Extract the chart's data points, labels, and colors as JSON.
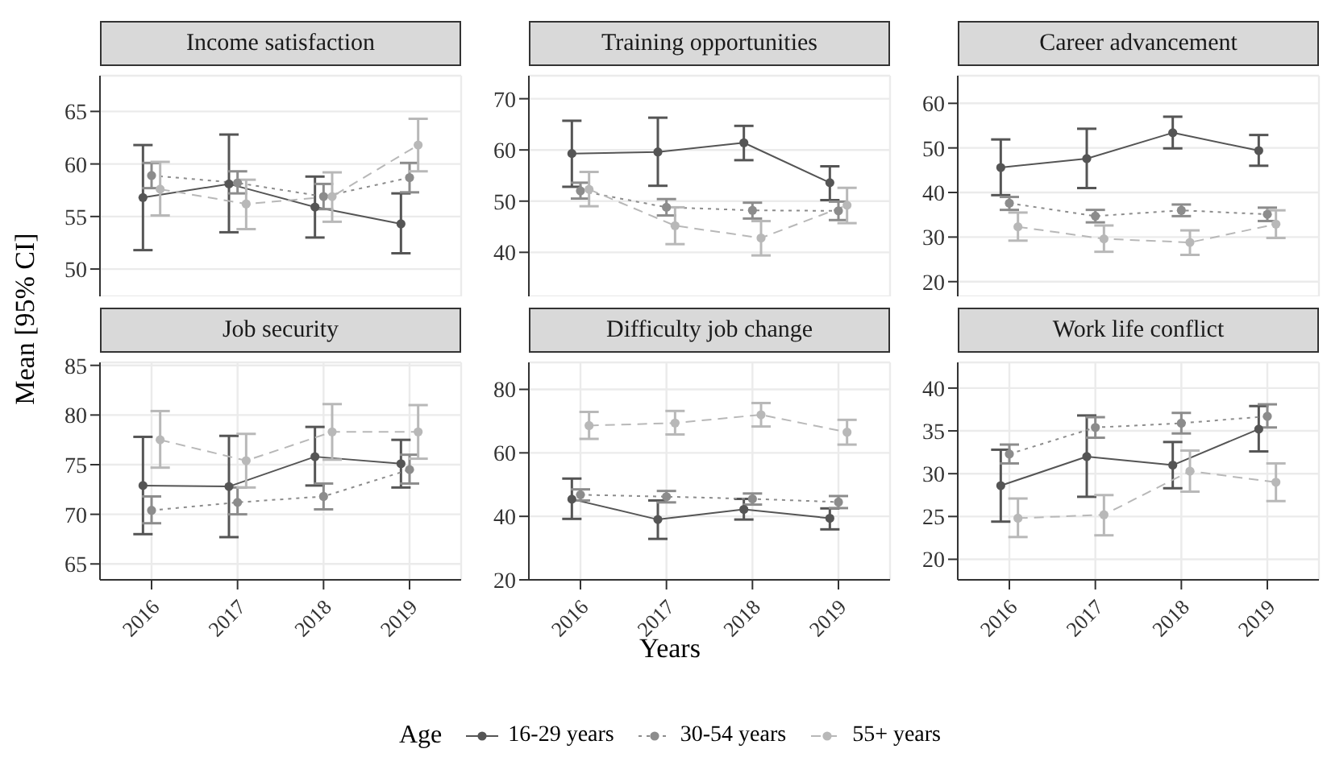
{
  "chart_data": [
    {
      "type": "line",
      "title": "Income satisfaction",
      "ylabel": "Mean [95% CI]",
      "legend_title": "Age",
      "legend": "bottom",
      "categories": [
        "2016",
        "2017",
        "2018",
        "2019"
      ],
      "ylim": [
        47.4,
        68.4
      ],
      "yticks": [
        50,
        55,
        60,
        65
      ],
      "grid": true,
      "tick_labels": "y",
      "marker": "circle",
      "series": [
        {
          "name": "16-29 years",
          "color": "#555555",
          "line_style": "solid",
          "values": [
            56.8,
            58.1,
            55.9,
            54.3
          ],
          "errors": [
            [
              51.8,
              61.8
            ],
            [
              53.5,
              62.8
            ],
            [
              53.0,
              58.8
            ],
            [
              51.5,
              57.2
            ]
          ]
        },
        {
          "name": "30-54 years",
          "color": "#8c8c8c",
          "line_style": "dotted",
          "values": [
            58.9,
            58.2,
            56.9,
            58.7
          ],
          "errors": [
            [
              57.7,
              60.1
            ],
            [
              57.2,
              59.3
            ],
            [
              55.7,
              58.1
            ],
            [
              57.3,
              60.1
            ]
          ]
        },
        {
          "name": "55+ years",
          "color": "#b8b8b8",
          "line_style": "dashed",
          "values": [
            57.6,
            56.2,
            56.9,
            61.8
          ],
          "errors": [
            [
              55.1,
              60.2
            ],
            [
              53.8,
              58.5
            ],
            [
              54.5,
              59.2
            ],
            [
              59.3,
              64.3
            ]
          ]
        }
      ]
    },
    {
      "type": "line",
      "title": "Training opportunities",
      "categories": [
        "2016",
        "2017",
        "2018",
        "2019"
      ],
      "ylim": [
        31.4,
        74.5
      ],
      "yticks": [
        40,
        50,
        60,
        70
      ],
      "grid": true,
      "tick_labels": "y",
      "marker": "circle",
      "series": [
        {
          "color": "#555555",
          "line_style": "solid",
          "values": [
            59.3,
            59.6,
            61.4,
            53.6
          ],
          "errors": [
            [
              52.8,
              65.7
            ],
            [
              53.0,
              66.3
            ],
            [
              58.0,
              64.7
            ],
            [
              50.2,
              56.8
            ]
          ]
        },
        {
          "color": "#8c8c8c",
          "line_style": "dotted",
          "values": [
            52.0,
            48.8,
            48.2,
            48.1
          ],
          "errors": [
            [
              50.5,
              53.6
            ],
            [
              47.2,
              50.4
            ],
            [
              46.6,
              49.7
            ],
            [
              46.3,
              49.9
            ]
          ]
        },
        {
          "color": "#b8b8b8",
          "line_style": "dashed",
          "values": [
            52.3,
            45.2,
            42.8,
            49.2
          ],
          "errors": [
            [
              49.0,
              55.7
            ],
            [
              41.6,
              48.8
            ],
            [
              39.4,
              46.1
            ],
            [
              45.7,
              52.6
            ]
          ]
        }
      ]
    },
    {
      "type": "line",
      "title": "Career advancement",
      "categories": [
        "2016",
        "2017",
        "2018",
        "2019"
      ],
      "ylim": [
        16.7,
        66.2
      ],
      "yticks": [
        20,
        30,
        40,
        50,
        60
      ],
      "grid": true,
      "tick_labels": "y",
      "marker": "circle",
      "series": [
        {
          "color": "#555555",
          "line_style": "solid",
          "values": [
            45.6,
            47.6,
            53.4,
            49.4
          ],
          "errors": [
            [
              39.4,
              51.9
            ],
            [
              41.0,
              54.3
            ],
            [
              49.9,
              57.0
            ],
            [
              46.0,
              52.9
            ]
          ]
        },
        {
          "color": "#8c8c8c",
          "line_style": "dotted",
          "values": [
            37.6,
            34.7,
            36.0,
            35.1
          ],
          "errors": [
            [
              36.1,
              39.0
            ],
            [
              33.3,
              36.1
            ],
            [
              34.7,
              37.3
            ],
            [
              33.6,
              36.6
            ]
          ]
        },
        {
          "color": "#b8b8b8",
          "line_style": "dashed",
          "values": [
            32.3,
            29.6,
            28.8,
            32.9
          ],
          "errors": [
            [
              29.2,
              35.5
            ],
            [
              26.7,
              32.6
            ],
            [
              26.0,
              31.5
            ],
            [
              29.8,
              36.0
            ]
          ]
        }
      ]
    },
    {
      "type": "line",
      "title": "Job security",
      "categories": [
        "2016",
        "2017",
        "2018",
        "2019"
      ],
      "ylim": [
        63.4,
        85.3
      ],
      "yticks": [
        65,
        70,
        75,
        80,
        85
      ],
      "grid": true,
      "marker": "circle",
      "series": [
        {
          "color": "#555555",
          "line_style": "solid",
          "values": [
            72.9,
            72.8,
            75.8,
            75.1
          ],
          "errors": [
            [
              68.0,
              77.8
            ],
            [
              67.7,
              77.9
            ],
            [
              72.9,
              78.8
            ],
            [
              72.7,
              77.5
            ]
          ]
        },
        {
          "color": "#8c8c8c",
          "line_style": "dotted",
          "values": [
            70.4,
            71.2,
            71.8,
            74.5
          ],
          "errors": [
            [
              69.1,
              71.8
            ],
            [
              70.0,
              72.7
            ],
            [
              70.5,
              73.1
            ],
            [
              73.1,
              76.0
            ]
          ]
        },
        {
          "color": "#b8b8b8",
          "line_style": "dashed",
          "values": [
            77.5,
            75.4,
            78.3,
            78.3
          ],
          "errors": [
            [
              74.7,
              80.4
            ],
            [
              72.7,
              78.1
            ],
            [
              75.5,
              81.1
            ],
            [
              75.6,
              81.0
            ]
          ]
        }
      ]
    },
    {
      "type": "line",
      "title": "Difficulty job change",
      "xlabel": "Years",
      "categories": [
        "2016",
        "2017",
        "2018",
        "2019"
      ],
      "ylim": [
        20,
        88.5
      ],
      "yticks": [
        20,
        40,
        60,
        80
      ],
      "grid": true,
      "marker": "circle",
      "series": [
        {
          "color": "#555555",
          "line_style": "solid",
          "values": [
            45.4,
            39.0,
            42.2,
            39.4
          ],
          "errors": [
            [
              39.2,
              51.9
            ],
            [
              32.9,
              45.0
            ],
            [
              39.0,
              45.5
            ],
            [
              35.9,
              42.5
            ]
          ]
        },
        {
          "color": "#8c8c8c",
          "line_style": "dotted",
          "values": [
            46.8,
            46.2,
            45.5,
            44.5
          ],
          "errors": [
            [
              45.0,
              48.5
            ],
            [
              44.4,
              48.0
            ],
            [
              43.7,
              47.2
            ],
            [
              42.6,
              46.4
            ]
          ]
        },
        {
          "color": "#b8b8b8",
          "line_style": "dashed",
          "values": [
            68.6,
            69.4,
            72.0,
            66.5
          ],
          "errors": [
            [
              64.4,
              72.9
            ],
            [
              65.8,
              73.2
            ],
            [
              68.3,
              75.7
            ],
            [
              62.6,
              70.4
            ]
          ]
        }
      ]
    },
    {
      "type": "line",
      "title": "Work life conflict",
      "categories": [
        "2016",
        "2017",
        "2018",
        "2019"
      ],
      "ylim": [
        17.6,
        43.0
      ],
      "yticks": [
        20,
        25,
        30,
        35,
        40
      ],
      "grid": true,
      "marker": "circle",
      "series": [
        {
          "color": "#555555",
          "line_style": "solid",
          "values": [
            28.6,
            32.0,
            31.0,
            35.2
          ],
          "errors": [
            [
              24.4,
              32.8
            ],
            [
              27.3,
              36.8
            ],
            [
              28.3,
              33.7
            ],
            [
              32.6,
              37.9
            ]
          ]
        },
        {
          "color": "#8c8c8c",
          "line_style": "dotted",
          "values": [
            32.3,
            35.4,
            35.9,
            36.7
          ],
          "errors": [
            [
              31.2,
              33.4
            ],
            [
              34.2,
              36.6
            ],
            [
              34.7,
              37.1
            ],
            [
              35.4,
              38.1
            ]
          ]
        },
        {
          "color": "#b8b8b8",
          "line_style": "dashed",
          "values": [
            24.8,
            25.2,
            30.3,
            29.0
          ],
          "errors": [
            [
              22.6,
              27.1
            ],
            [
              22.8,
              27.5
            ],
            [
              27.9,
              32.7
            ],
            [
              26.8,
              31.2
            ]
          ]
        }
      ]
    }
  ]
}
